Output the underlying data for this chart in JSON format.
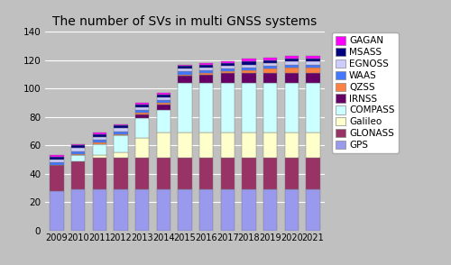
{
  "title": "The number of SVs in multi GNSS systems",
  "years": [
    2009,
    2010,
    2011,
    2012,
    2013,
    2014,
    2015,
    2016,
    2017,
    2018,
    2019,
    2020,
    2021
  ],
  "series": {
    "GPS": [
      28,
      29,
      29,
      29,
      29,
      29,
      29,
      29,
      29,
      29,
      29,
      29,
      29
    ],
    "GLONASS": [
      18,
      20,
      22,
      22,
      22,
      22,
      22,
      22,
      22,
      22,
      22,
      22,
      22
    ],
    "Galileo": [
      0,
      0,
      2,
      4,
      14,
      18,
      18,
      18,
      18,
      18,
      18,
      18,
      18
    ],
    "COMPASS": [
      0,
      4,
      8,
      12,
      14,
      16,
      35,
      35,
      35,
      35,
      35,
      35,
      35
    ],
    "IRNSS": [
      0,
      0,
      0,
      0,
      3,
      4,
      5,
      6,
      7,
      7,
      7,
      7,
      7
    ],
    "QZSS": [
      0,
      1,
      1,
      1,
      1,
      1,
      1,
      1,
      1,
      2,
      3,
      4,
      4
    ],
    "WAAS": [
      2,
      2,
      2,
      2,
      2,
      2,
      2,
      2,
      2,
      2,
      2,
      2,
      2
    ],
    "EGNOSS": [
      2,
      2,
      2,
      2,
      2,
      2,
      2,
      2,
      2,
      2,
      2,
      2,
      2
    ],
    "MSASS": [
      2,
      2,
      2,
      2,
      2,
      2,
      2,
      2,
      2,
      2,
      2,
      2,
      2
    ],
    "GAGAN": [
      1,
      1,
      1,
      1,
      1,
      1,
      1,
      1,
      1,
      2,
      2,
      2,
      2
    ]
  },
  "colors": {
    "GPS": "#9999EE",
    "GLONASS": "#993366",
    "Galileo": "#FFFFCC",
    "COMPASS": "#CCFFFF",
    "IRNSS": "#660066",
    "QZSS": "#FF8040",
    "WAAS": "#4477FF",
    "EGNOSS": "#CCCCFF",
    "MSASS": "#000080",
    "GAGAN": "#FF00FF"
  },
  "legend_order": [
    "GAGAN",
    "MSASS",
    "EGNOSS",
    "WAAS",
    "QZSS",
    "IRNSS",
    "COMPASS",
    "Galileo",
    "GLONASS",
    "GPS"
  ],
  "ylim": [
    0,
    140
  ],
  "yticks": [
    0,
    20,
    40,
    60,
    80,
    100,
    120,
    140
  ],
  "bg_color": "#C0C0C0",
  "plot_bg_color": "#C0C0C0",
  "legend_fontsize": 7.5,
  "title_fontsize": 10
}
